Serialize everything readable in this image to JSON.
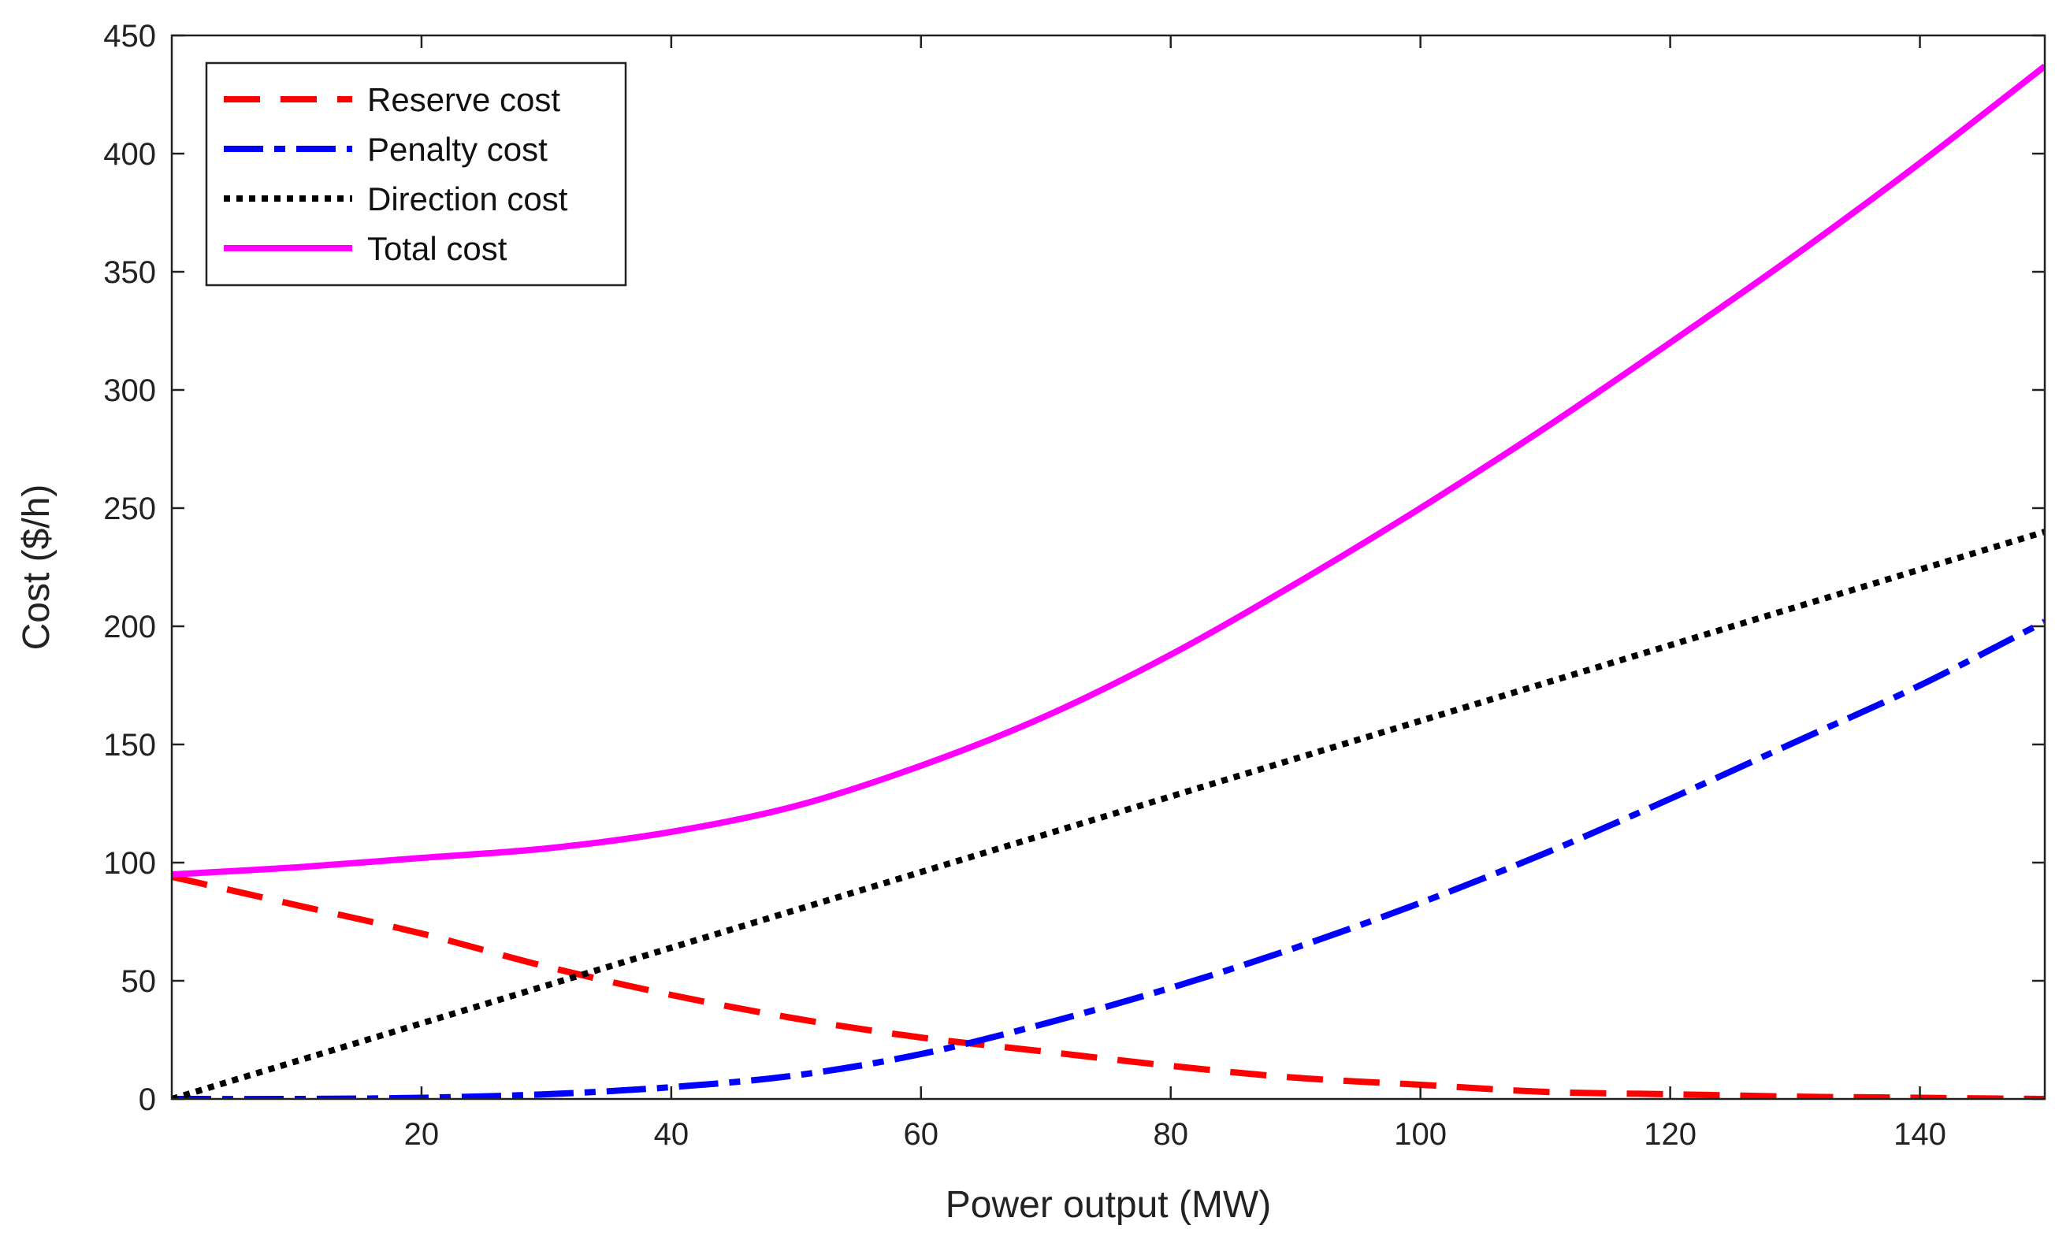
{
  "chart_data": {
    "type": "line",
    "title": "",
    "xlabel": "Power output (MW)",
    "ylabel": "Cost ($/h)",
    "xlim": [
      0,
      150
    ],
    "ylim": [
      0,
      450
    ],
    "xticks": [
      20,
      40,
      60,
      80,
      100,
      120,
      140
    ],
    "yticks": [
      0,
      50,
      100,
      150,
      200,
      250,
      300,
      350,
      400,
      450
    ],
    "grid": false,
    "legend_position": "top-left",
    "series": [
      {
        "name": "Reserve cost",
        "color": "#ff0000",
        "style": "dashed",
        "x": [
          0,
          10,
          20,
          30,
          40,
          50,
          60,
          70,
          80,
          90,
          100,
          110,
          120,
          130,
          140,
          150
        ],
        "y": [
          94,
          82,
          70,
          56,
          44,
          34,
          26,
          20,
          14,
          9,
          6,
          3,
          2,
          1,
          0.5,
          0
        ]
      },
      {
        "name": "Penalty cost",
        "color": "#0000ff",
        "style": "dash-dot",
        "x": [
          0,
          10,
          20,
          30,
          40,
          50,
          60,
          70,
          80,
          90,
          100,
          110,
          120,
          130,
          140,
          150
        ],
        "y": [
          0,
          0,
          0.5,
          2,
          5,
          10,
          19,
          32,
          47,
          64,
          83,
          104,
          127,
          151,
          175,
          202
        ]
      },
      {
        "name": "Direction cost",
        "color": "#000000",
        "style": "dotted",
        "x": [
          0,
          10,
          20,
          30,
          40,
          50,
          60,
          70,
          80,
          90,
          100,
          110,
          120,
          130,
          140,
          150
        ],
        "y": [
          0,
          16,
          32,
          48,
          64,
          80,
          96,
          112,
          128,
          144,
          160,
          176,
          192,
          208,
          224,
          240
        ]
      },
      {
        "name": "Total cost",
        "color": "#ff00ff",
        "style": "solid",
        "x": [
          0,
          10,
          20,
          30,
          40,
          50,
          60,
          70,
          80,
          90,
          100,
          110,
          120,
          130,
          140,
          150
        ],
        "y": [
          95,
          98,
          102,
          106,
          113,
          124,
          141,
          162,
          188,
          218,
          250,
          284,
          320,
          357,
          396,
          437
        ]
      }
    ]
  }
}
